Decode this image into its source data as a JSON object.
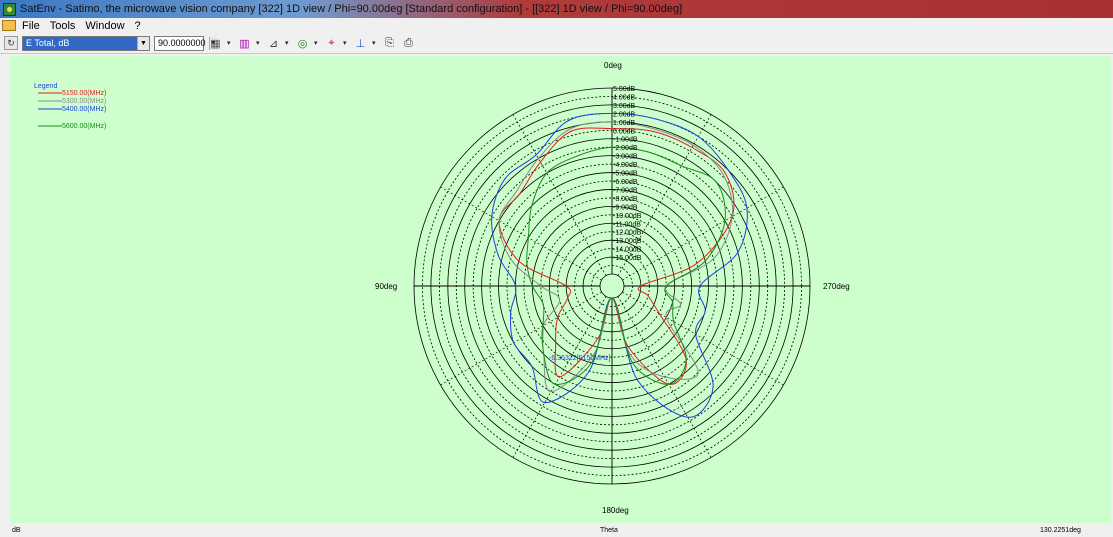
{
  "window": {
    "title": "SatEnv - Satimo, the microwave vision company [322] 1D view / Phi=90.00deg [Standard configuration] - [[322] 1D view / Phi=90.00deg]"
  },
  "menu": {
    "items": [
      "File",
      "Tools",
      "Window",
      "?"
    ]
  },
  "toolbar": {
    "component_select": "E Total, dB",
    "phi_select": "90.0000000"
  },
  "status": {
    "left": "dB",
    "center": "Theta",
    "right": "130.2251deg"
  },
  "chart_data": {
    "type": "polar-line",
    "angle_labels": {
      "top": "0deg",
      "left": "90deg",
      "right": "270deg",
      "bottom": "180deg"
    },
    "r_labels": [
      "5.00dB",
      "4.00dB",
      "3.00dB",
      "2.00dB",
      "1.00dB",
      "0.00dB",
      "-1.00dB",
      "-2.00dB",
      "-3.00dB",
      "-4.00dB",
      "-5.00dB",
      "-6.00dB",
      "-7.00dB",
      "-8.00dB",
      "-9.00dB",
      "-10.00dB",
      "-11.00dB",
      "-12.00dB",
      "-13.00dB",
      "-14.00dB",
      "-15.00dB"
    ],
    "r_lim": [
      -17,
      5
    ],
    "legend_title": "Legend",
    "annotation": "-6.36322[5150MHz]",
    "theta_deg": [
      0,
      15,
      30,
      45,
      60,
      75,
      90,
      105,
      120,
      135,
      150,
      165,
      180,
      195,
      210,
      225,
      240,
      255,
      270,
      285,
      300,
      315,
      330,
      345
    ],
    "series": [
      {
        "name": "5150.00(MHz)",
        "color": "#e02020",
        "values": [
          0.2,
          0.5,
          -1.5,
          -3,
          -3,
          -7,
          -13,
          -13,
          -11,
          -9,
          -6,
          -12,
          -17,
          -11,
          -5,
          -6,
          -12,
          -14,
          -15,
          -8,
          -2,
          0.5,
          0.5,
          0.5
        ]
      },
      {
        "name": "5300.00(MHz)",
        "color": "#8a8a8a",
        "values": [
          1,
          0.8,
          -1,
          -2.5,
          -3,
          -6,
          -10,
          -12,
          -9,
          -7,
          -4,
          -10,
          -17,
          -10,
          -6,
          -4,
          -11,
          -10,
          -12,
          -6,
          -2,
          0.2,
          0.8,
          0.8
        ]
      },
      {
        "name": "5400.00(MHz)",
        "color": "#2040e0",
        "values": [
          2,
          1.8,
          -0.5,
          -0.5,
          -2,
          -4.5,
          -7,
          -6,
          -5,
          -5,
          -2.5,
          -8,
          -17,
          -7,
          -0.5,
          -1.5,
          -7,
          -7,
          -8,
          -3,
          0,
          1,
          2,
          2
        ]
      },
      {
        "name": "5600.00(MHz)",
        "color": "#1a8c1a",
        "values": [
          -2,
          -2.5,
          -3,
          -5,
          -7,
          -8,
          -9,
          -10,
          -9,
          -7,
          -5,
          -9,
          -17,
          -9,
          -5,
          -6,
          -10,
          -11,
          -12,
          -7,
          -3,
          -1,
          -2,
          -2
        ]
      }
    ]
  }
}
